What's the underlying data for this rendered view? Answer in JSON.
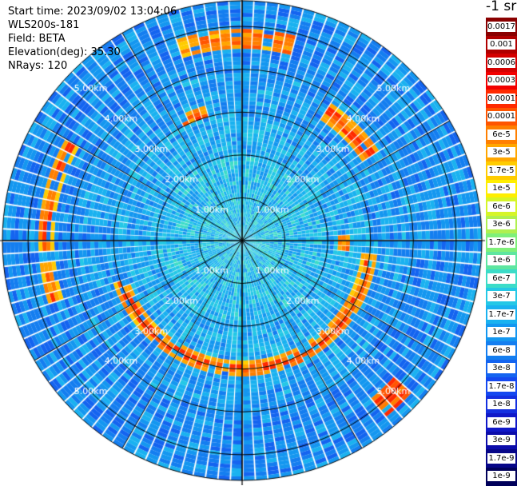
{
  "header": {
    "start_time": "Start time: 2023/09/02 13:04:06",
    "instrument": "WLS200s-181",
    "field": "Field: BETA",
    "elevation": "Elevation(deg): 35.30",
    "nrays": "NRays: 120"
  },
  "colorbar": {
    "title": "-1 sr",
    "labels": [
      "0.0017",
      "0.001",
      "0.0006",
      "0.0003",
      "0.00017",
      "0.0001",
      "6e-5",
      "3e-5",
      "1.7e-5",
      "1e-5",
      "6e-6",
      "3e-6",
      "1.7e-6",
      "1e-6",
      "6e-7",
      "3e-7",
      "1.7e-7",
      "1e-7",
      "6e-8",
      "3e-8",
      "1.7e-8",
      "1e-8",
      "6e-9",
      "3e-9",
      "1.7e-9",
      "1e-9"
    ],
    "colors": [
      "#8a0000",
      "#b00000",
      "#d40000",
      "#f20000",
      "#ff2a00",
      "#ff5500",
      "#ff7f00",
      "#ffa600",
      "#ffcc00",
      "#ffee00",
      "#d6f528",
      "#b0f050",
      "#7ff07a",
      "#5ee6a0",
      "#3cdcc8",
      "#24c8e6",
      "#1ab2f0",
      "#1497f0",
      "#147ef0",
      "#1464f0",
      "#1448f0",
      "#1430e0",
      "#1018c8",
      "#0c0caa",
      "#060688",
      "#00005a"
    ]
  },
  "chart_data": {
    "type": "ppi_polar_scan",
    "field": "BETA",
    "units": "-1 sr",
    "nrays": 120,
    "elevation_deg": 35.3,
    "range_rings_km": [
      1,
      2,
      3,
      4,
      5
    ],
    "ring_labels": [
      "1.00km",
      "2.00km",
      "3.00km",
      "4.00km",
      "5.00km"
    ],
    "colorbar_scale": "log",
    "colorbar_range": [
      1e-09,
      0.0017
    ],
    "typical_value_inner": "3e-7",
    "typical_value_outer": "6e-8",
    "enhanced_features": [
      {
        "location": "ring near 3 km, south to east",
        "value": "1.7e-5"
      },
      {
        "location": "west near 4.5 km",
        "value": "1e-5"
      },
      {
        "location": "north-east near 3.5 km",
        "value": "1.7e-5"
      },
      {
        "location": "south-east near 5 km",
        "value": "3e-5"
      }
    ]
  }
}
